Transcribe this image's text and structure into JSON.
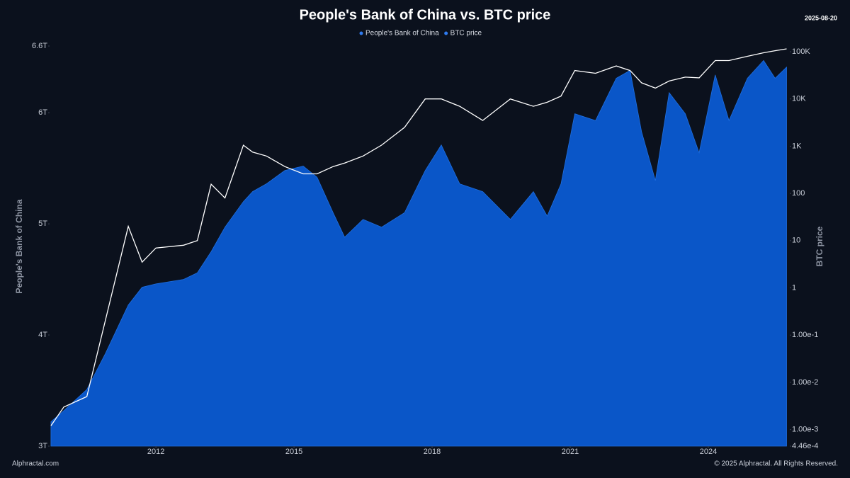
{
  "chart_data": {
    "type": "area-line",
    "title": "People's Bank of China vs. BTC price",
    "date": "2025-08-20",
    "watermark": "Alphractal",
    "footer_left": "Alphractal.com",
    "footer_right": "© 2025 Alphractal. All Rights Reserved.",
    "y_label": "People's Bank of China",
    "y2_label": "BTC price",
    "legend_color": "#2f7bf0",
    "grid": false,
    "x": [
      2009.72,
      2010.0,
      2010.5,
      2010.9,
      2011.4,
      2011.7,
      2012.0,
      2012.6,
      2012.9,
      2013.2,
      2013.5,
      2013.9,
      2014.1,
      2014.4,
      2014.8,
      2015.2,
      2015.5,
      2015.85,
      2016.1,
      2016.5,
      2016.9,
      2017.4,
      2017.85,
      2018.2,
      2018.6,
      2019.1,
      2019.7,
      2020.2,
      2020.5,
      2020.8,
      2021.1,
      2021.55,
      2022.0,
      2022.3,
      2022.55,
      2022.85,
      2023.15,
      2023.5,
      2023.8,
      2024.15,
      2024.45,
      2024.85,
      2025.2,
      2025.45,
      2025.7
    ],
    "xlim": [
      2009.69,
      2025.77
    ],
    "xticks": [
      2012,
      2015,
      2018,
      2021,
      2024
    ],
    "ylim": [
      3,
      6.6
    ],
    "yticks": [
      {
        "value": 3,
        "label": "3T"
      },
      {
        "value": 4,
        "label": "4T"
      },
      {
        "value": 5,
        "label": "5T"
      },
      {
        "value": 6,
        "label": "6T"
      },
      {
        "value": 6.6,
        "label": "6.6T"
      }
    ],
    "y2lim": [
      0.000446,
      132000
    ],
    "y2_log": true,
    "y2ticks": [
      {
        "value": 100000,
        "label": "100K"
      },
      {
        "value": 10000,
        "label": "10K"
      },
      {
        "value": 1000,
        "label": "1K"
      },
      100,
      10,
      1,
      {
        "value": 0.1,
        "label": "1.00e-1"
      },
      {
        "value": 0.01,
        "label": "1.00e-2"
      },
      {
        "value": 0.001,
        "label": "1.00e-3"
      },
      {
        "value": 0.000446,
        "label": "4.46e-4"
      }
    ],
    "series": [
      {
        "name": "People's Bank of China",
        "color": "#0a56c8",
        "axis": "y",
        "values": [
          3.22,
          3.32,
          3.51,
          3.83,
          4.27,
          4.43,
          4.46,
          4.5,
          4.56,
          4.75,
          4.97,
          5.2,
          5.29,
          5.36,
          5.48,
          5.52,
          5.42,
          5.1,
          4.88,
          5.04,
          4.97,
          5.1,
          5.48,
          5.71,
          5.36,
          5.29,
          5.04,
          5.29,
          5.07,
          5.36,
          5.99,
          5.93,
          6.31,
          6.38,
          5.83,
          5.39,
          6.18,
          5.99,
          5.64,
          6.34,
          5.93,
          6.31,
          6.47,
          6.31,
          6.41
        ]
      },
      {
        "name": "BTC price",
        "color": "#ffffff",
        "axis": "y2",
        "values": [
          0.0012,
          0.003,
          0.005,
          0.2,
          20,
          3.5,
          7,
          8,
          10,
          156,
          80,
          1050,
          750,
          620,
          370,
          260,
          260,
          370,
          440,
          620,
          1050,
          2500,
          10000,
          10000,
          7000,
          3500,
          10000,
          7000,
          8500,
          11500,
          40000,
          35000,
          50000,
          40000,
          22000,
          17000,
          24000,
          29000,
          28000,
          65000,
          65000,
          80000,
          95000,
          105000,
          115000
        ]
      }
    ]
  }
}
